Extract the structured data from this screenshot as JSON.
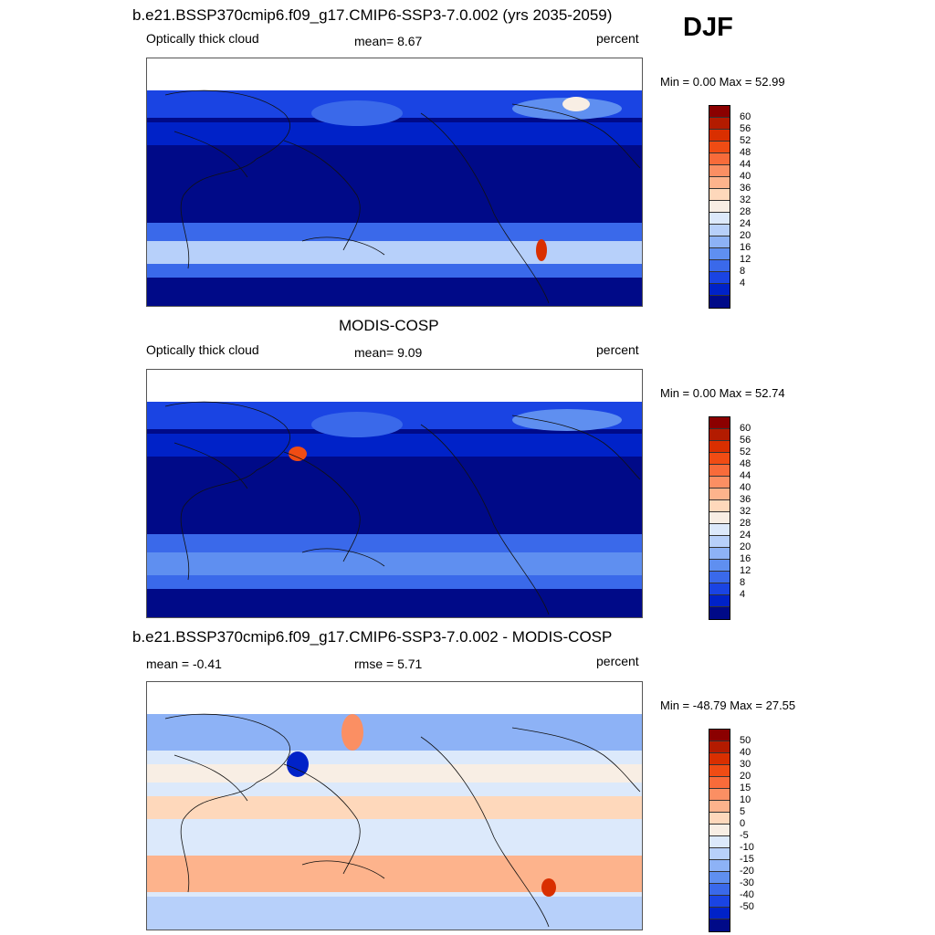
{
  "season": "DJF",
  "panels": [
    {
      "title": "b.e21.BSSP370cmip6.f09_g17.CMIP6-SSP3-7.0.002 (yrs 2035-2059)",
      "left_label": "Optically thick cloud",
      "center_label": "mean=   8.67",
      "right_label": "percent",
      "minmax": "Min =    0.00 Max =  52.99",
      "kind": "model"
    },
    {
      "title": "MODIS-COSP",
      "left_label": "Optically thick cloud",
      "center_label": "mean=   9.09",
      "right_label": "percent",
      "minmax": "Min =    0.00 Max =  52.74",
      "kind": "obs"
    },
    {
      "title": "b.e21.BSSP370cmip6.f09_g17.CMIP6-SSP3-7.0.002 - MODIS-COSP",
      "left_label": "mean =  -0.41",
      "center_label": "rmse =   5.71",
      "right_label": "percent",
      "minmax": "Min = -48.79 Max =  27.55",
      "kind": "diff"
    }
  ],
  "chart_data": [
    {
      "type": "heatmap",
      "title": "b.e21.BSSP370cmip6.f09_g17.CMIP6-SSP3-7.0.002 (yrs 2035-2059)",
      "variable": "Optically thick cloud",
      "units": "percent",
      "mean": 8.67,
      "min": 0.0,
      "max": 52.99,
      "colorbar_ticks": [
        "60",
        "56",
        "52",
        "48",
        "44",
        "40",
        "36",
        "32",
        "28",
        "24",
        "20",
        "16",
        "12",
        "8",
        "4"
      ],
      "colorbar_colors": [
        "#8b0000",
        "#b31b00",
        "#d92f00",
        "#f04c14",
        "#f86b3a",
        "#fb8f63",
        "#fdb38c",
        "#fed8bb",
        "#f8eee4",
        "#dce9fb",
        "#b7d0fa",
        "#8db2f6",
        "#5f8ff0",
        "#3a69ea",
        "#1a44e3",
        "#0022c8",
        "#000a88"
      ]
    },
    {
      "type": "heatmap",
      "title": "MODIS-COSP",
      "variable": "Optically thick cloud",
      "units": "percent",
      "mean": 9.09,
      "min": 0.0,
      "max": 52.74,
      "colorbar_ticks": [
        "60",
        "56",
        "52",
        "48",
        "44",
        "40",
        "36",
        "32",
        "28",
        "24",
        "20",
        "16",
        "12",
        "8",
        "4"
      ],
      "colorbar_colors": [
        "#8b0000",
        "#b31b00",
        "#d92f00",
        "#f04c14",
        "#f86b3a",
        "#fb8f63",
        "#fdb38c",
        "#fed8bb",
        "#f8eee4",
        "#dce9fb",
        "#b7d0fa",
        "#8db2f6",
        "#5f8ff0",
        "#3a69ea",
        "#1a44e3",
        "#0022c8",
        "#000a88"
      ]
    },
    {
      "type": "heatmap",
      "title": "b.e21.BSSP370cmip6.f09_g17.CMIP6-SSP3-7.0.002 - MODIS-COSP",
      "units": "percent",
      "mean": -0.41,
      "rmse": 5.71,
      "min": -48.79,
      "max": 27.55,
      "colorbar_ticks": [
        "50",
        "40",
        "30",
        "20",
        "15",
        "10",
        "5",
        "0",
        "-5",
        "-10",
        "-15",
        "-20",
        "-30",
        "-40",
        "-50"
      ],
      "colorbar_colors": [
        "#8b0000",
        "#b31b00",
        "#d92f00",
        "#f04c14",
        "#f86b3a",
        "#fb8f63",
        "#fdb38c",
        "#fed8bb",
        "#f8eee4",
        "#dce9fb",
        "#b7d0fa",
        "#8db2f6",
        "#5f8ff0",
        "#3a69ea",
        "#1a44e3",
        "#0022c8",
        "#000a88"
      ]
    }
  ]
}
